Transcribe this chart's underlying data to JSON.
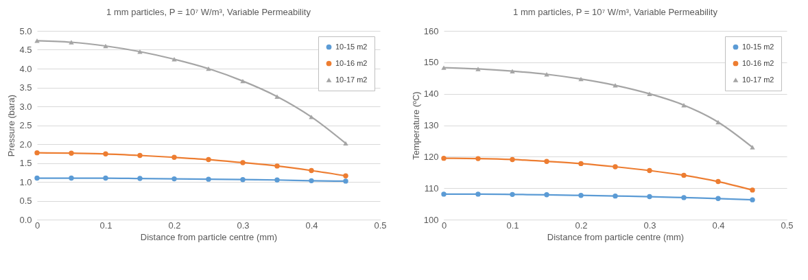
{
  "chart_data": [
    {
      "type": "line",
      "title": "1 mm particles, P = 10⁷ W/m³, Variable Permeability",
      "xlabel": "Distance from particle centre (mm)",
      "ylabel": "Pressure (bara)",
      "x": [
        0,
        0.05,
        0.1,
        0.15,
        0.2,
        0.25,
        0.3,
        0.35,
        0.4,
        0.45
      ],
      "xlim": [
        0,
        0.5
      ],
      "xticks": [
        0,
        0.1,
        0.2,
        0.3,
        0.4,
        0.5
      ],
      "ylim": [
        0,
        5
      ],
      "yticks": [
        {
          "value": 0,
          "label": "0.0"
        },
        {
          "value": 0.5,
          "label": "0.5"
        },
        {
          "value": 1,
          "label": "1.0"
        },
        {
          "value": 1.5,
          "label": "1.5"
        },
        {
          "value": 2,
          "label": "2.0"
        },
        {
          "value": 2.5,
          "label": "2.5"
        },
        {
          "value": 3,
          "label": "3.0"
        },
        {
          "value": 3.5,
          "label": "3.5"
        },
        {
          "value": 4,
          "label": "4.0"
        },
        {
          "value": 4.5,
          "label": "4.5"
        },
        {
          "value": 5,
          "label": "5.0"
        }
      ],
      "grid": "y",
      "legend": "top right",
      "series": [
        {
          "name": "10-15 m2",
          "color": "#5b9bd5",
          "marker": "circle",
          "values": [
            1.1,
            1.1,
            1.1,
            1.09,
            1.08,
            1.07,
            1.06,
            1.05,
            1.03,
            1.02
          ]
        },
        {
          "name": "10-16 m2",
          "color": "#ed7d31",
          "marker": "circle",
          "values": [
            1.77,
            1.76,
            1.74,
            1.7,
            1.65,
            1.59,
            1.51,
            1.42,
            1.3,
            1.16
          ]
        },
        {
          "name": "10-17 m2",
          "color": "#a5a5a5",
          "marker": "triangle",
          "values": [
            4.74,
            4.7,
            4.6,
            4.45,
            4.25,
            4.0,
            3.67,
            3.26,
            2.72,
            2.02
          ]
        }
      ]
    },
    {
      "type": "line",
      "title": "1 mm particles, P = 10⁷ W/m³, Variable Permeability",
      "xlabel": "Distance from particle centre (mm)",
      "ylabel": "Temperature (ºC)",
      "x": [
        0,
        0.05,
        0.1,
        0.15,
        0.2,
        0.25,
        0.3,
        0.35,
        0.4,
        0.45
      ],
      "xlim": [
        0,
        0.5
      ],
      "xticks": [
        0,
        0.1,
        0.2,
        0.3,
        0.4,
        0.5
      ],
      "ylim": [
        100,
        160
      ],
      "yticks": [
        100,
        110,
        120,
        130,
        140,
        150,
        160
      ],
      "grid": "y",
      "legend": "top right",
      "series": [
        {
          "name": "10-15 m2",
          "color": "#5b9bd5",
          "marker": "circle",
          "values": [
            108.1,
            108.1,
            108.0,
            107.9,
            107.7,
            107.5,
            107.3,
            107.0,
            106.7,
            106.3
          ]
        },
        {
          "name": "10-16 m2",
          "color": "#ed7d31",
          "marker": "circle",
          "values": [
            119.5,
            119.4,
            119.1,
            118.5,
            117.8,
            116.8,
            115.6,
            114.1,
            112.1,
            109.4
          ]
        },
        {
          "name": "10-17 m2",
          "color": "#a5a5a5",
          "marker": "triangle",
          "values": [
            148.3,
            147.9,
            147.2,
            146.2,
            144.7,
            142.7,
            140.0,
            136.4,
            131.0,
            123.0
          ]
        }
      ]
    }
  ]
}
